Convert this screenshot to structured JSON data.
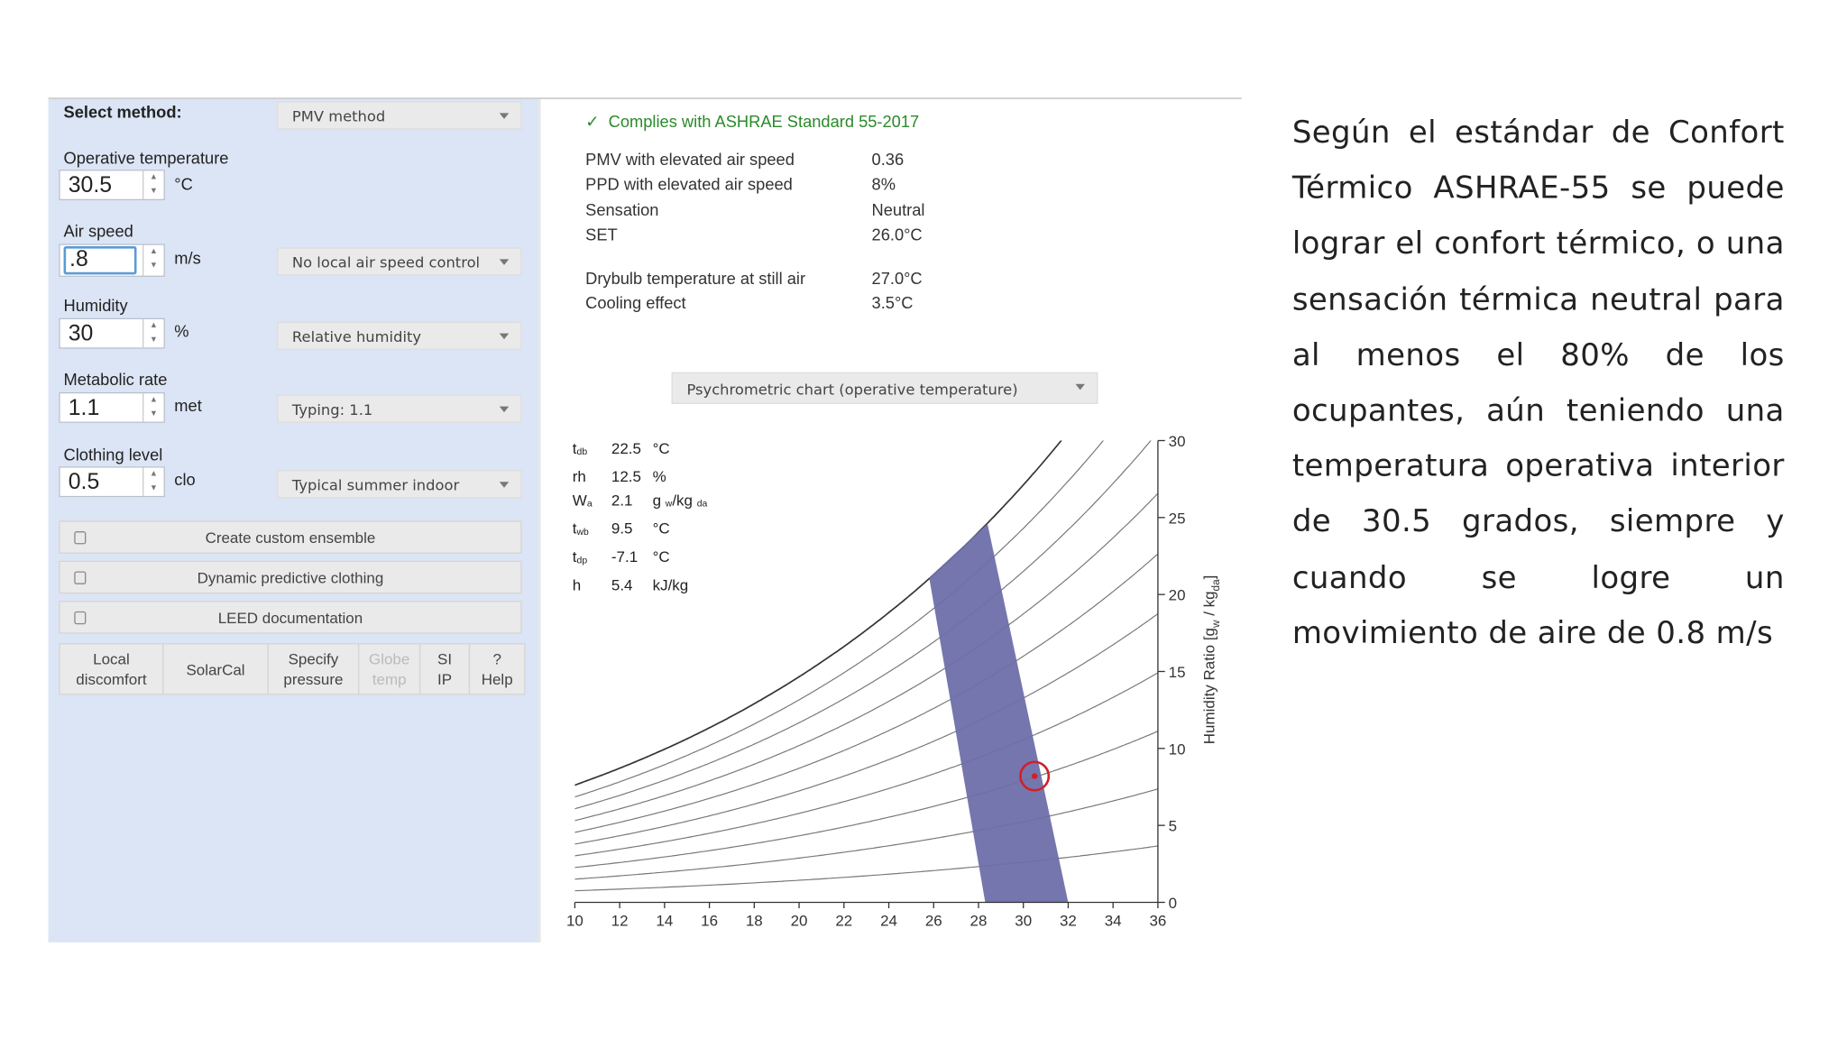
{
  "left_panel": {
    "select_method": {
      "label": "Select method:",
      "value": "PMV method"
    },
    "inputs": [
      {
        "label": "Operative temperature",
        "value": "30.5",
        "unit": "°C"
      },
      {
        "label": "Air speed",
        "value": ".8",
        "unit": "m/s",
        "option": "No local air speed control"
      },
      {
        "label": "Humidity",
        "value": "30",
        "unit": "%",
        "option": "Relative humidity"
      },
      {
        "label": "Metabolic rate",
        "value": "1.1",
        "unit": "met",
        "option": "Typing: 1.1"
      },
      {
        "label": "Clothing level",
        "value": "0.5",
        "unit": "clo",
        "option": "Typical summer indoor"
      }
    ],
    "buttons": [
      "Create custom ensemble",
      "Dynamic predictive clothing",
      "LEED documentation"
    ],
    "tabs": [
      "Local discomfort",
      "SolarCal",
      "Specify pressure",
      "Globe temp",
      "SI IP",
      "? Help"
    ]
  },
  "results": {
    "compliance": "Complies with ASHRAE Standard 55-2017",
    "rows": [
      [
        "PMV with elevated air speed",
        "0.36"
      ],
      [
        "PPD with elevated air speed",
        "8%"
      ],
      [
        "Sensation",
        "Neutral"
      ],
      [
        "SET",
        "26.0°C"
      ]
    ],
    "still_air_rows": [
      [
        "Drybulb temperature at still air",
        "27.0°C"
      ],
      [
        "Cooling effect",
        "3.5°C"
      ]
    ]
  },
  "chart_selector": "Psychrometric chart (operative temperature)",
  "chart_info": [
    {
      "symbol": "t",
      "sub": "db",
      "value": "22.5",
      "unit": "°C"
    },
    {
      "symbol": "rh",
      "value": "12.5",
      "unit": "%"
    },
    {
      "symbol": "W",
      "sub": "a",
      "value": "2.1",
      "unit": "g",
      "unit_sub": "w",
      "unit2": "/kg",
      "unit2_sub": "da"
    },
    {
      "symbol": "t",
      "sub": "wb",
      "value": "9.5",
      "unit": "°C"
    },
    {
      "symbol": "t",
      "sub": "dp",
      "value": "-7.1",
      "unit": "°C"
    },
    {
      "symbol": "h",
      "value": "5.4",
      "unit": "kJ/kg"
    }
  ],
  "chart": {
    "xlim": [
      10,
      36
    ],
    "xticks": [
      10,
      12,
      14,
      16,
      18,
      20,
      22,
      24,
      26,
      28,
      30,
      32,
      34,
      36
    ],
    "ylim": [
      0,
      30
    ],
    "yticks": [
      0,
      5,
      10,
      15,
      20,
      25,
      30
    ],
    "y_label": [
      "Humidity Ratio [g",
      "w",
      " / kg",
      "da",
      "]"
    ],
    "comfort_zone": {
      "x": [
        25.8,
        28.4,
        32,
        28.3
      ],
      "y": [
        21.1,
        24.6,
        0,
        0
      ],
      "color": "#6f6faa"
    },
    "point": {
      "x": 30.5,
      "y": 8.2,
      "color": "#d0202a"
    }
  },
  "paragraph": "Según el estándar de Confort Térmico ASHRAE-55 se puede lograr el confort térmico, o una sensación térmica neutral para al menos el 80% de los ocupantes, aún teniendo una temperatura operativa interior de 30.5 grados, siempre y cuando se logre un movimiento de aire de 0.8 m/s"
}
